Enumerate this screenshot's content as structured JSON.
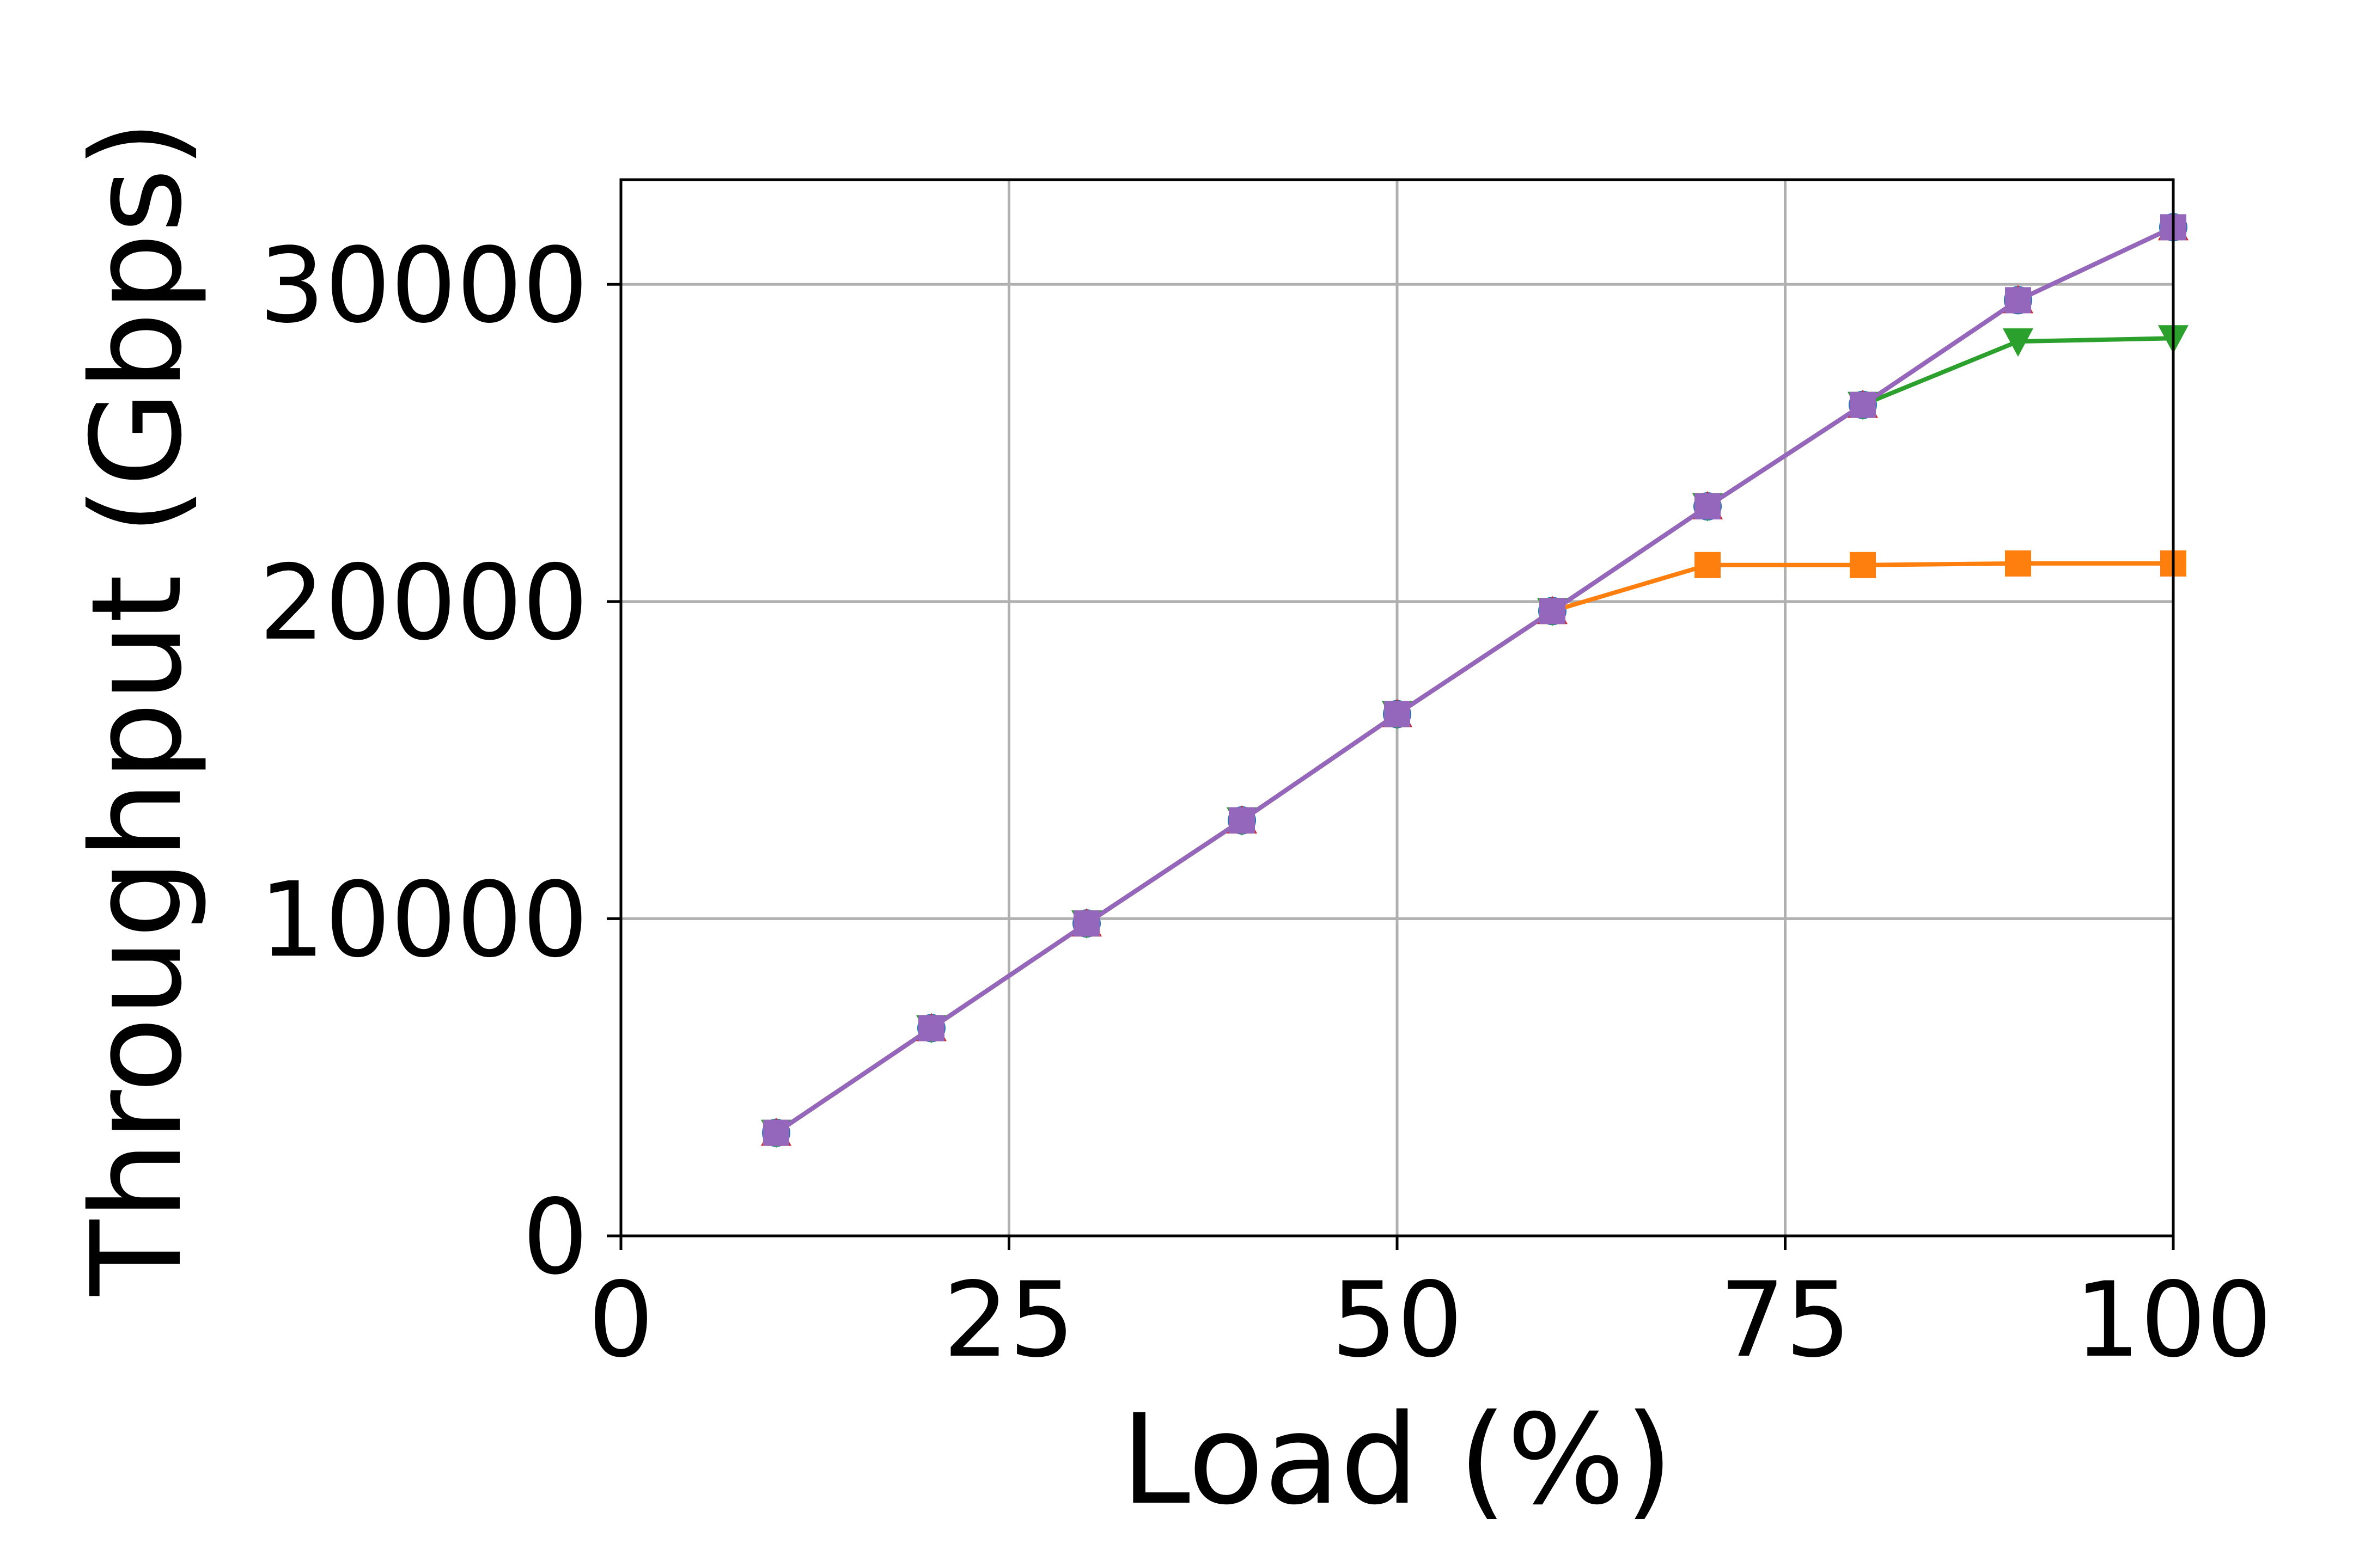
{
  "chart_data": {
    "type": "line",
    "xlabel": "Load (%)",
    "ylabel": "Throughput (Gbps)",
    "xlim": [
      0,
      100
    ],
    "ylim": [
      0,
      33300
    ],
    "x_ticks": [
      "0",
      "25",
      "50",
      "75",
      "100"
    ],
    "y_ticks": [
      "0",
      "10000",
      "20000",
      "30000"
    ],
    "grid": true,
    "legend": "none",
    "x": [
      10,
      20,
      30,
      40,
      50,
      60,
      70,
      80,
      90,
      100
    ],
    "series": [
      {
        "color": "#1f77b4",
        "marker": "circle",
        "values": [
          3250,
          6550,
          9850,
          13100,
          16450,
          19700,
          23000,
          26200,
          29500,
          31800
        ]
      },
      {
        "color": "#ff7f0e",
        "marker": "square",
        "values": [
          3250,
          6550,
          9850,
          13100,
          16450,
          19700,
          21150,
          21150,
          21200,
          21200
        ]
      },
      {
        "color": "#2ca02c",
        "marker": "triangle-down",
        "values": [
          3250,
          6550,
          9850,
          13100,
          16450,
          19700,
          23000,
          26200,
          28200,
          28300
        ]
      },
      {
        "color": "#d62728",
        "marker": "triangle-up",
        "values": [
          3250,
          6550,
          9850,
          13100,
          16450,
          19700,
          23000,
          26200,
          29500,
          31800
        ]
      },
      {
        "color": "#9467bd",
        "marker": "square",
        "values": [
          3250,
          6550,
          9850,
          13100,
          16450,
          19700,
          23000,
          26200,
          29500,
          31800
        ]
      }
    ]
  }
}
